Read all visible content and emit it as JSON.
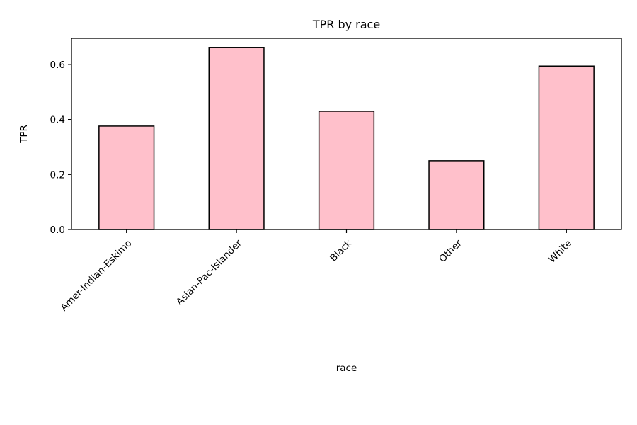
{
  "chart_data": {
    "type": "bar",
    "title": "TPR by race",
    "xlabel": "race",
    "ylabel": "TPR",
    "categories": [
      "Amer-Indian-Eskimo",
      "Asian-Pac-Islander",
      "Black",
      "Other",
      "White"
    ],
    "values": [
      0.376,
      0.661,
      0.43,
      0.25,
      0.594
    ],
    "ylim": [
      0,
      0.695
    ],
    "yticks": [
      0.0,
      0.2,
      0.4,
      0.6
    ],
    "ytick_labels": [
      "0.0",
      "0.2",
      "0.4",
      "0.6"
    ],
    "bar_color": "#ffc0cb",
    "edge_color": "#000000",
    "grid": false,
    "legend": "none"
  }
}
